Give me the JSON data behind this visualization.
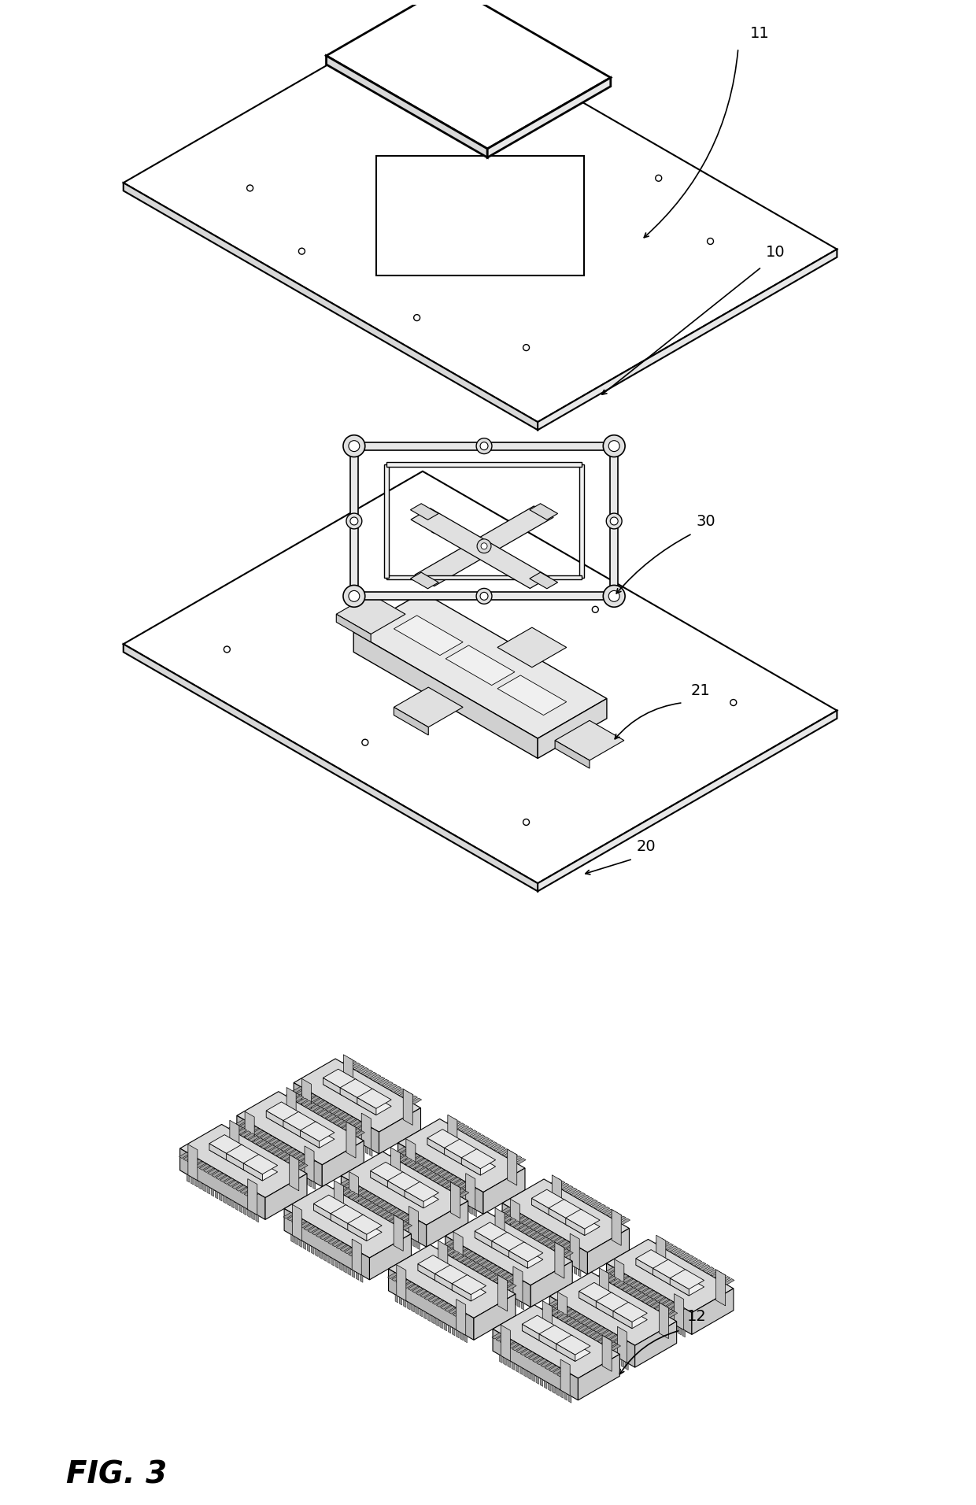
{
  "fig_label": "FIG. 3",
  "bg_color": "#ffffff",
  "line_color": "#000000",
  "label_fontsize": 14,
  "fig_label_fontsize": 28
}
